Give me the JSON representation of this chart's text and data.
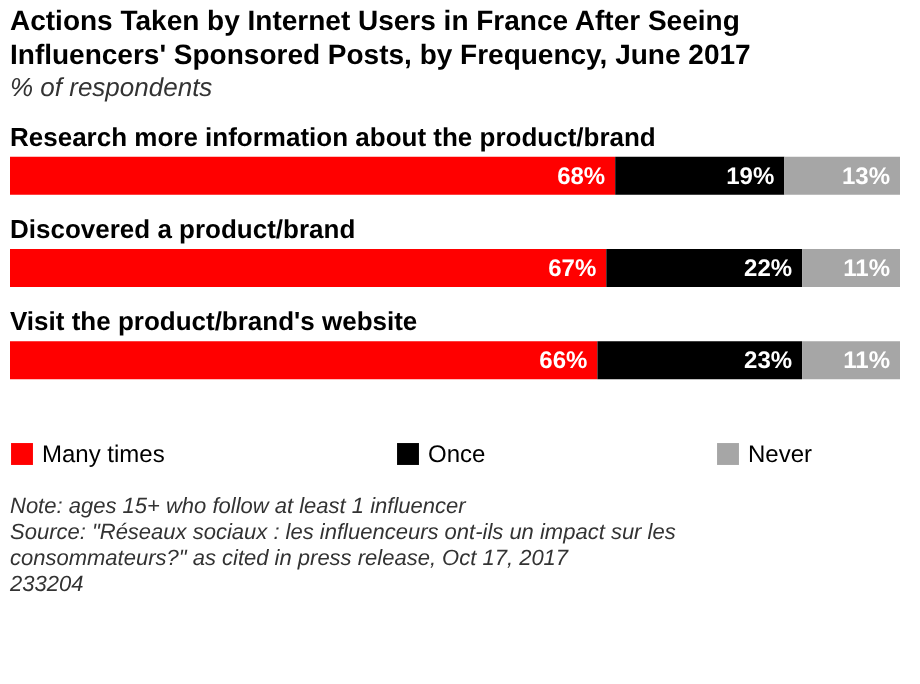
{
  "chart_data": {
    "type": "bar",
    "orientation": "horizontal",
    "stacked": true,
    "title": "Actions Taken by Internet Users in France After Seeing Influencers' Sponsored Posts, by Frequency, June 2017",
    "subtitle": "% of respondents",
    "categories": [
      "Research more information about the product/brand",
      "Discovered a product/brand",
      "Visit the product/brand's website"
    ],
    "series": [
      {
        "name": "Many times",
        "color": "#ff0000",
        "values": [
          68,
          67,
          66
        ],
        "value_labels": [
          "68%",
          "67%",
          "66%"
        ]
      },
      {
        "name": "Once",
        "color": "#000000",
        "values": [
          19,
          22,
          23
        ],
        "value_labels": [
          "19%",
          "22%",
          "23%"
        ]
      },
      {
        "name": "Never",
        "color": "#a6a6a6",
        "values": [
          13,
          11,
          11
        ],
        "value_labels": [
          "13%",
          "11%",
          "11%"
        ]
      }
    ],
    "legend": "bottom",
    "annotations": [
      "Note: ages 15+ who follow at least 1 influencer",
      "Source: \"Réseaux sociaux : les influenceurs ont-ils un impact sur les consommateurs?\" as cited in press release, Oct 17, 2017",
      "233204"
    ]
  }
}
